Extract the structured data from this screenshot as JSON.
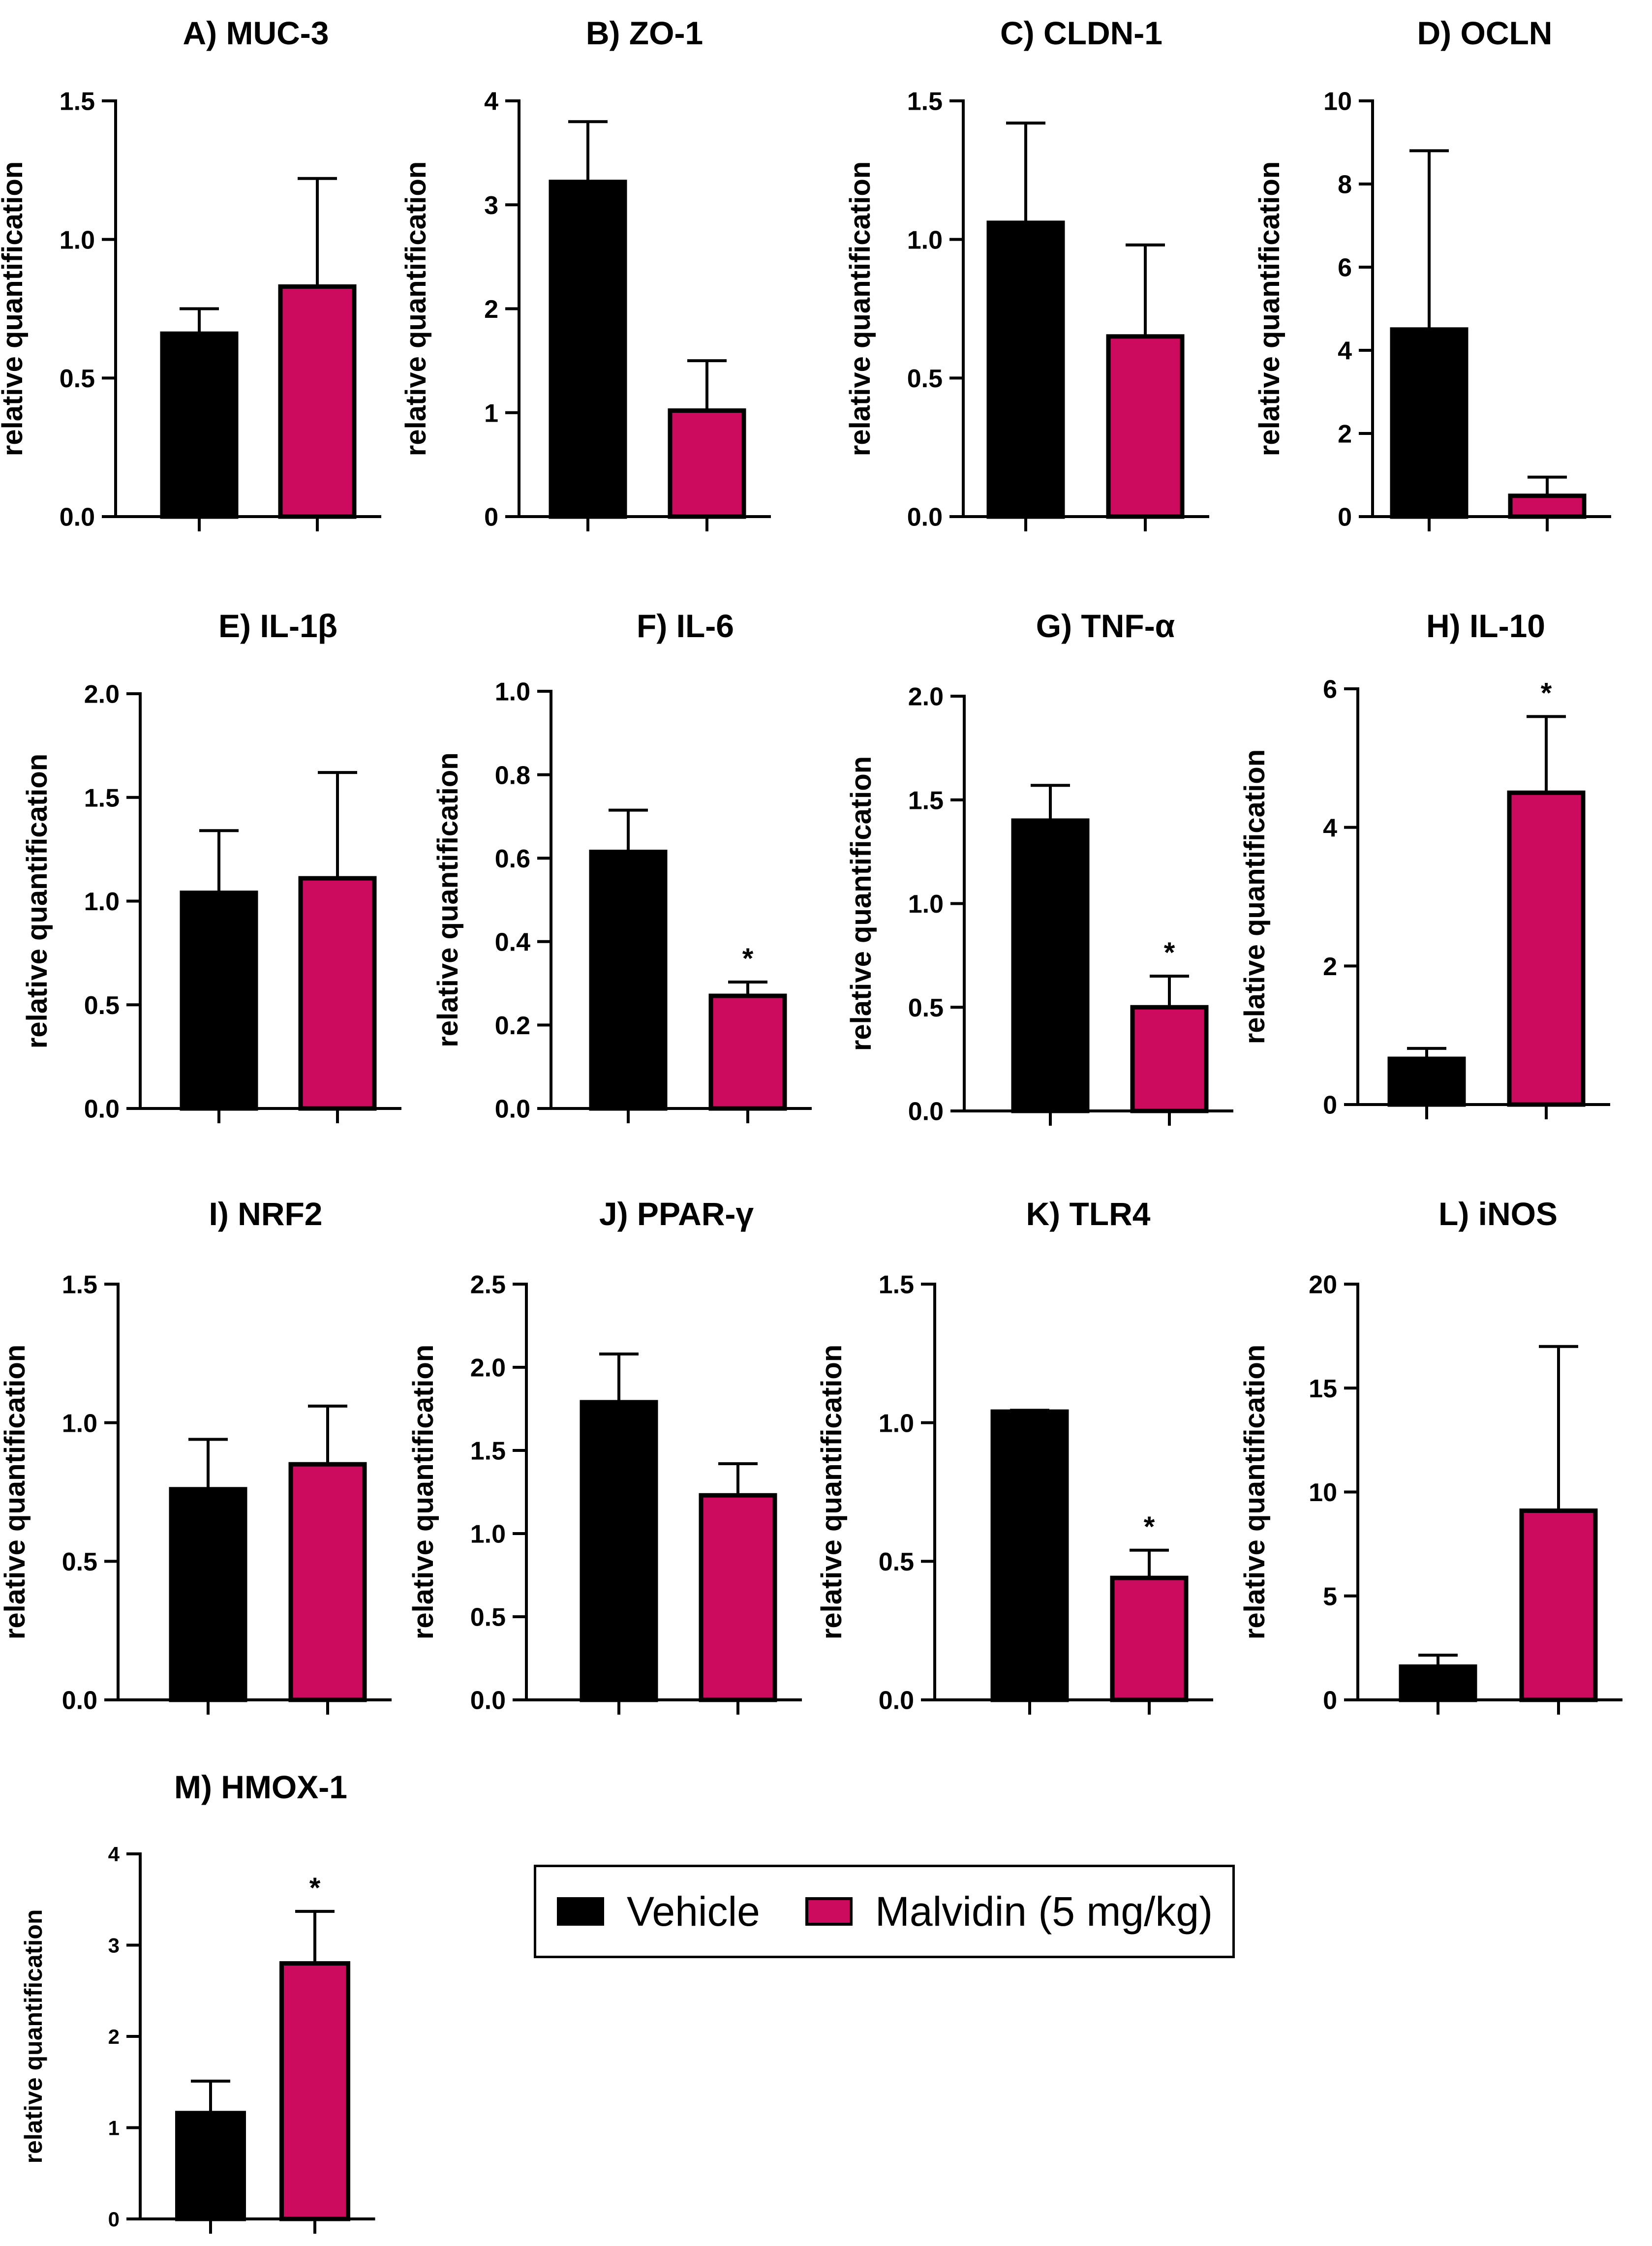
{
  "colors": {
    "vehicle": "#000000",
    "malvidin": "#cc0b5f",
    "axis": "#000000"
  },
  "legend": {
    "items": [
      {
        "label": "Vehicle",
        "color": "#000000"
      },
      {
        "label": "Malvidin (5 mg/kg)",
        "color": "#cc0b5f"
      }
    ]
  },
  "chart_data": [
    {
      "type": "bar",
      "title": "A) MUC-3",
      "ylabel": "relative quantification",
      "categories": [
        "Vehicle",
        "Malvidin (5 mg/kg)"
      ],
      "values": [
        0.66,
        0.83
      ],
      "errors": [
        0.09,
        0.39
      ],
      "ylim": [
        0,
        1.5
      ],
      "yticks": [
        "0.0",
        "0.5",
        "1.0",
        "1.5"
      ],
      "significance": [
        "",
        ""
      ]
    },
    {
      "type": "bar",
      "title": "B) ZO-1",
      "ylabel": "relative quantification",
      "categories": [
        "Vehicle",
        "Malvidin (5 mg/kg)"
      ],
      "values": [
        3.22,
        1.02
      ],
      "errors": [
        0.58,
        0.48
      ],
      "ylim": [
        0,
        4
      ],
      "yticks": [
        "0",
        "1",
        "2",
        "3",
        "4"
      ],
      "significance": [
        "",
        ""
      ]
    },
    {
      "type": "bar",
      "title": "C) CLDN-1",
      "ylabel": "relative quantification",
      "categories": [
        "Vehicle",
        "Malvidin (5 mg/kg)"
      ],
      "values": [
        1.06,
        0.65
      ],
      "errors": [
        0.36,
        0.33
      ],
      "ylim": [
        0,
        1.5
      ],
      "yticks": [
        "0.0",
        "0.5",
        "1.0",
        "1.5"
      ],
      "significance": [
        "",
        ""
      ]
    },
    {
      "type": "bar",
      "title": "D) OCLN",
      "ylabel": "relative quantification",
      "categories": [
        "Vehicle",
        "Malvidin (5 mg/kg)"
      ],
      "values": [
        4.5,
        0.5
      ],
      "errors": [
        4.3,
        0.45
      ],
      "ylim": [
        0,
        10
      ],
      "yticks": [
        "0",
        "2",
        "4",
        "6",
        "8",
        "10"
      ],
      "significance": [
        "",
        ""
      ]
    },
    {
      "type": "bar",
      "title": "E) IL-1β",
      "ylabel": "relative quantification",
      "categories": [
        "Vehicle",
        "Malvidin (5 mg/kg)"
      ],
      "values": [
        1.04,
        1.11
      ],
      "errors": [
        0.3,
        0.51
      ],
      "ylim": [
        0,
        2.0
      ],
      "yticks": [
        "0.0",
        "0.5",
        "1.0",
        "1.5",
        "2.0"
      ],
      "significance": [
        "",
        ""
      ]
    },
    {
      "type": "bar",
      "title": "F) IL-6",
      "ylabel": "relative quantification",
      "categories": [
        "Vehicle",
        "Malvidin (5 mg/kg)"
      ],
      "values": [
        0.615,
        0.27
      ],
      "errors": [
        0.1,
        0.033
      ],
      "ylim": [
        0,
        1.0
      ],
      "yticks": [
        "0.0",
        "0.2",
        "0.4",
        "0.6",
        "0.8",
        "1.0"
      ],
      "significance": [
        "",
        "*"
      ]
    },
    {
      "type": "bar",
      "title": "G) TNF-α",
      "ylabel": "relative quantification",
      "categories": [
        "Vehicle",
        "Malvidin (5 mg/kg)"
      ],
      "values": [
        1.4,
        0.5
      ],
      "errors": [
        0.17,
        0.15
      ],
      "ylim": [
        0,
        2.0
      ],
      "yticks": [
        "0.0",
        "0.5",
        "1.0",
        "1.5",
        "2.0"
      ],
      "significance": [
        "",
        "*"
      ]
    },
    {
      "type": "bar",
      "title": "H) IL-10",
      "ylabel": "relative quantification",
      "categories": [
        "Vehicle",
        "Malvidin (5 mg/kg)"
      ],
      "values": [
        0.66,
        4.5
      ],
      "errors": [
        0.15,
        1.1
      ],
      "ylim": [
        0,
        6
      ],
      "yticks": [
        "0",
        "2",
        "4",
        "6"
      ],
      "significance": [
        "",
        "*"
      ]
    },
    {
      "type": "bar",
      "title": "I) NRF2",
      "ylabel": "relative quantification",
      "categories": [
        "Vehicle",
        "Malvidin (5 mg/kg)"
      ],
      "values": [
        0.76,
        0.85
      ],
      "errors": [
        0.18,
        0.21
      ],
      "ylim": [
        0,
        1.5
      ],
      "yticks": [
        "0.0",
        "0.5",
        "1.0",
        "1.5"
      ],
      "significance": [
        "",
        ""
      ]
    },
    {
      "type": "bar",
      "title": "J) PPAR-γ",
      "ylabel": "relative quantification",
      "categories": [
        "Vehicle",
        "Malvidin (5 mg/kg)"
      ],
      "values": [
        1.79,
        1.23
      ],
      "errors": [
        0.29,
        0.19
      ],
      "ylim": [
        0,
        2.5
      ],
      "yticks": [
        "0.0",
        "0.5",
        "1.0",
        "1.5",
        "2.0",
        "2.5"
      ],
      "significance": [
        "",
        ""
      ]
    },
    {
      "type": "bar",
      "title": "K) TLR4",
      "ylabel": "relative quantification",
      "categories": [
        "Vehicle",
        "Malvidin (5 mg/kg)"
      ],
      "values": [
        1.04,
        0.44
      ],
      "errors": [
        0.005,
        0.1
      ],
      "ylim": [
        0,
        1.5
      ],
      "yticks": [
        "0.0",
        "0.5",
        "1.0",
        "1.5"
      ],
      "significance": [
        "",
        "*"
      ]
    },
    {
      "type": "bar",
      "title": "L) iNOS",
      "ylabel": "relative quantification",
      "categories": [
        "Vehicle",
        "Malvidin (5 mg/kg)"
      ],
      "values": [
        1.6,
        9.1
      ],
      "errors": [
        0.55,
        7.9
      ],
      "ylim": [
        0,
        20
      ],
      "yticks": [
        "0",
        "5",
        "10",
        "15",
        "20"
      ],
      "significance": [
        "",
        ""
      ]
    },
    {
      "type": "bar",
      "title": "M) HMOX-1",
      "ylabel": "relative quantification",
      "categories": [
        "Vehicle",
        "Malvidin (5 mg/kg)"
      ],
      "values": [
        1.16,
        2.8
      ],
      "errors": [
        0.35,
        0.57
      ],
      "ylim": [
        0,
        4
      ],
      "yticks": [
        "0",
        "1",
        "2",
        "3",
        "4"
      ],
      "significance": [
        "",
        "*"
      ]
    }
  ]
}
